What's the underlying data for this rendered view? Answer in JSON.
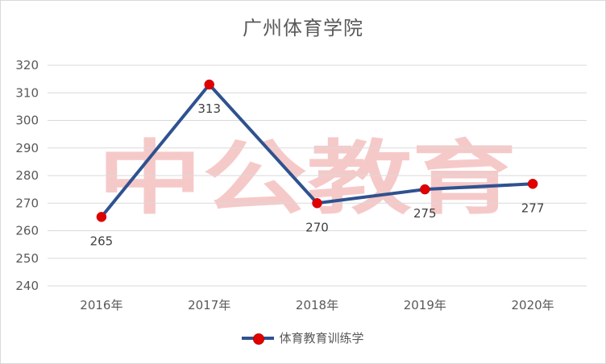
{
  "watermark": "中公教育",
  "chart_data": {
    "type": "line",
    "title": "广州体育学院",
    "categories": [
      "2016年",
      "2017年",
      "2018年",
      "2019年",
      "2020年"
    ],
    "series": [
      {
        "name": "体育教育训练学",
        "values": [
          265,
          313,
          270,
          275,
          277
        ]
      }
    ],
    "data_labels": [
      "265",
      "313",
      "270",
      "275",
      "277"
    ],
    "ylim": [
      240,
      320
    ],
    "yticks": [
      240,
      250,
      260,
      270,
      280,
      290,
      300,
      310,
      320
    ],
    "grid": true,
    "legend": "bottom",
    "colors": {
      "line": "#2f528f",
      "marker": "#e00000",
      "grid": "#d9d9d9"
    }
  }
}
